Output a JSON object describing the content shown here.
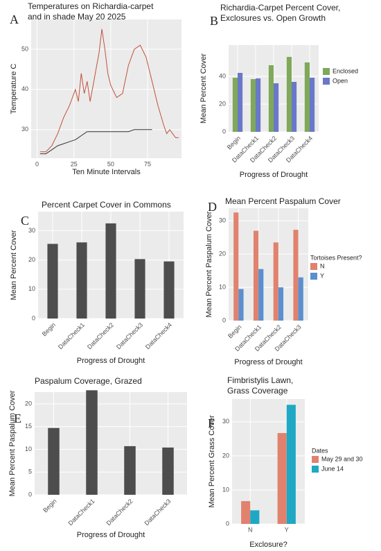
{
  "chart_data": [
    {
      "type": "line",
      "label": "A",
      "title": [
        "Temperatures on Richardia-carpet",
        "and in shade May 20 2025"
      ],
      "xlabel": "Ten Minute Intervals",
      "ylabel": "Temperature C",
      "x": [
        2,
        6,
        10,
        14,
        18,
        22,
        26,
        28,
        30,
        32,
        34,
        36,
        38,
        40,
        42,
        44,
        46,
        48,
        50,
        54,
        58,
        62,
        66,
        70,
        74,
        78,
        82,
        86,
        88,
        90,
        92,
        94,
        96
      ],
      "series": [
        {
          "color": "#c0503a",
          "values": [
            24.5,
            24.5,
            26,
            29,
            33,
            36,
            40,
            37,
            44,
            39,
            42,
            37,
            41,
            45,
            49,
            55,
            50,
            44,
            41,
            38,
            39,
            46,
            50,
            51,
            48,
            42,
            36,
            31,
            29,
            30,
            29,
            28,
            28
          ]
        },
        {
          "color": "#333333",
          "values": [
            24,
            24,
            25,
            26,
            26.5,
            27,
            27.5,
            28,
            28.5,
            29,
            29.5,
            29.5,
            29.5,
            29.5,
            29.5,
            29.5,
            29.5,
            29.5,
            29.5,
            29.5,
            29.5,
            29.5,
            30,
            30,
            30,
            30,
            null,
            null,
            null,
            null,
            null,
            null,
            null
          ]
        }
      ],
      "xlim": [
        -4,
        98
      ],
      "ylim": [
        22.9,
        57.4
      ],
      "xticks": [
        0,
        25,
        50,
        75
      ],
      "yticks": [
        30,
        40,
        50
      ],
      "grid": true
    },
    {
      "type": "bar",
      "label": "B",
      "title": [
        "Richardia-Carpet Percent Cover,",
        "Exclosures vs. Open Growth"
      ],
      "xlabel": "Progress of Drought",
      "ylabel": "Mean Percent Cover",
      "categories": [
        "Begin",
        "DataCheck1",
        "DataCheck2",
        "DataCheck3",
        "DataCheck4"
      ],
      "series": [
        {
          "name": "Enclosed",
          "color": "#7fa85a",
          "values": [
            39,
            38,
            48,
            54,
            50
          ]
        },
        {
          "name": "Open",
          "color": "#6a78c9",
          "values": [
            42.5,
            38.5,
            35,
            36,
            39
          ]
        }
      ],
      "ylim": [
        0,
        62.5
      ],
      "yticks": [
        0,
        20,
        40
      ],
      "grid": true,
      "legend": "right"
    },
    {
      "type": "bar",
      "label": "C",
      "title": [
        "Percent Carpet Cover in Commons"
      ],
      "xlabel": "Progress of Drought",
      "ylabel": "Mean Percent Cover",
      "categories": [
        "Begin",
        "DataCheck1",
        "DataCheck2",
        "DataCheck3",
        "DataCheck4"
      ],
      "values": [
        25.5,
        26,
        32.5,
        20.3,
        19.5
      ],
      "color": "#4d4d4d",
      "ylim": [
        0,
        36.5
      ],
      "yticks": [
        0,
        10,
        20,
        30
      ],
      "grid": true
    },
    {
      "type": "bar",
      "label": "D",
      "title": [
        "Mean Percent Paspalum Cover"
      ],
      "xlabel": "Progress of Drought",
      "ylabel": "Mean Percent Paspalum Cover",
      "categories": [
        "Begin",
        "DataCheck1",
        "DataCheck2",
        "DataCheck3"
      ],
      "legend_title": "Tortoises Present?",
      "series": [
        {
          "name": "N",
          "color": "#e0826e",
          "values": [
            32.5,
            27,
            23.5,
            27.3
          ]
        },
        {
          "name": "Y",
          "color": "#5b8fd0",
          "values": [
            9.5,
            15.5,
            10,
            13
          ]
        }
      ],
      "ylim": [
        0,
        33.8
      ],
      "yticks": [
        0,
        10,
        20,
        30
      ],
      "grid": true,
      "legend": "right"
    },
    {
      "type": "bar",
      "label": "E",
      "title": [
        "Paspalum Coverage, Grazed"
      ],
      "xlabel": "Progress of Drought",
      "ylabel": "Mean Percent Paspalum Cover",
      "categories": [
        "Begin",
        "DataCheck1",
        "DataCheck2",
        "DataCheck3"
      ],
      "values": [
        14.7,
        23,
        10.7,
        10.4
      ],
      "color": "#4d4d4d",
      "ylim": [
        0,
        22.6
      ],
      "yticks": [
        0,
        5,
        10,
        15,
        20
      ],
      "grid": true
    },
    {
      "type": "bar",
      "label": "F",
      "title": [
        "Fimbristylis Lawn,",
        "Grass Coverage"
      ],
      "xlabel": "Exclosure?",
      "ylabel": "Mean Percent Grass Cover",
      "categories": [
        "N",
        "Y"
      ],
      "legend_title": "Dates",
      "series": [
        {
          "name": "May 29 and 30",
          "color": "#e0826e",
          "values": [
            6.7,
            26.7
          ]
        },
        {
          "name": "June 14",
          "color": "#1fa8c4",
          "values": [
            4,
            35
          ]
        }
      ],
      "ylim": [
        0,
        36.7
      ],
      "yticks": [
        0,
        10,
        20,
        30
      ],
      "grid": true,
      "legend": "right"
    }
  ]
}
